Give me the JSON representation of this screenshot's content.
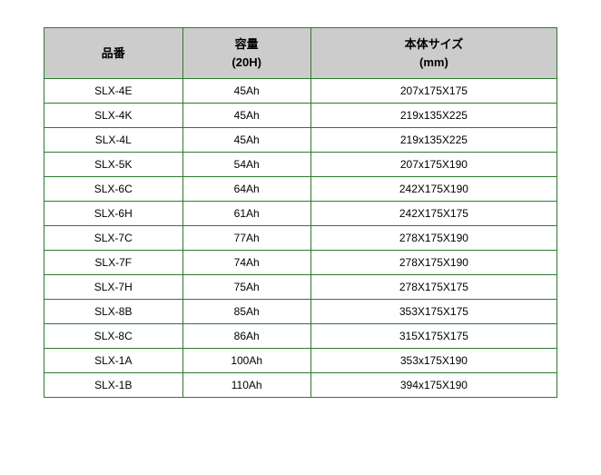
{
  "table": {
    "columns": [
      {
        "key": "id",
        "line1": "品番",
        "line2": ""
      },
      {
        "key": "capacity",
        "line1": "容量",
        "line2": "(20H)"
      },
      {
        "key": "size",
        "line1": "本体サイズ",
        "line2": "(mm)"
      }
    ],
    "rows": [
      {
        "id": "SLX-4E",
        "capacity": "45Ah",
        "size": "207x175X175"
      },
      {
        "id": "SLX-4K",
        "capacity": "45Ah",
        "size": "219x135X225"
      },
      {
        "id": "SLX-4L",
        "capacity": "45Ah",
        "size": "219x135X225"
      },
      {
        "id": "SLX-5K",
        "capacity": "54Ah",
        "size": "207x175X190"
      },
      {
        "id": "SLX-6C",
        "capacity": "64Ah",
        "size": "242X175X190"
      },
      {
        "id": "SLX-6H",
        "capacity": "61Ah",
        "size": "242X175X175"
      },
      {
        "id": "SLX-7C",
        "capacity": "77Ah",
        "size": "278X175X190"
      },
      {
        "id": "SLX-7F",
        "capacity": "74Ah",
        "size": "278X175X190"
      },
      {
        "id": "SLX-7H",
        "capacity": "75Ah",
        "size": "278X175X175"
      },
      {
        "id": "SLX-8B",
        "capacity": "85Ah",
        "size": "353X175X175"
      },
      {
        "id": "SLX-8C",
        "capacity": "86Ah",
        "size": "315X175X175"
      },
      {
        "id": "SLX-1A",
        "capacity": "100Ah",
        "size": "353x175X190"
      },
      {
        "id": "SLX-1B",
        "capacity": "110Ah",
        "size": "394x175X190"
      }
    ],
    "header_bg": "#cccccc",
    "border_color": "#2d7a2d",
    "cell_bg": "#ffffff",
    "header_fontsize": 13,
    "cell_fontsize": 12
  }
}
